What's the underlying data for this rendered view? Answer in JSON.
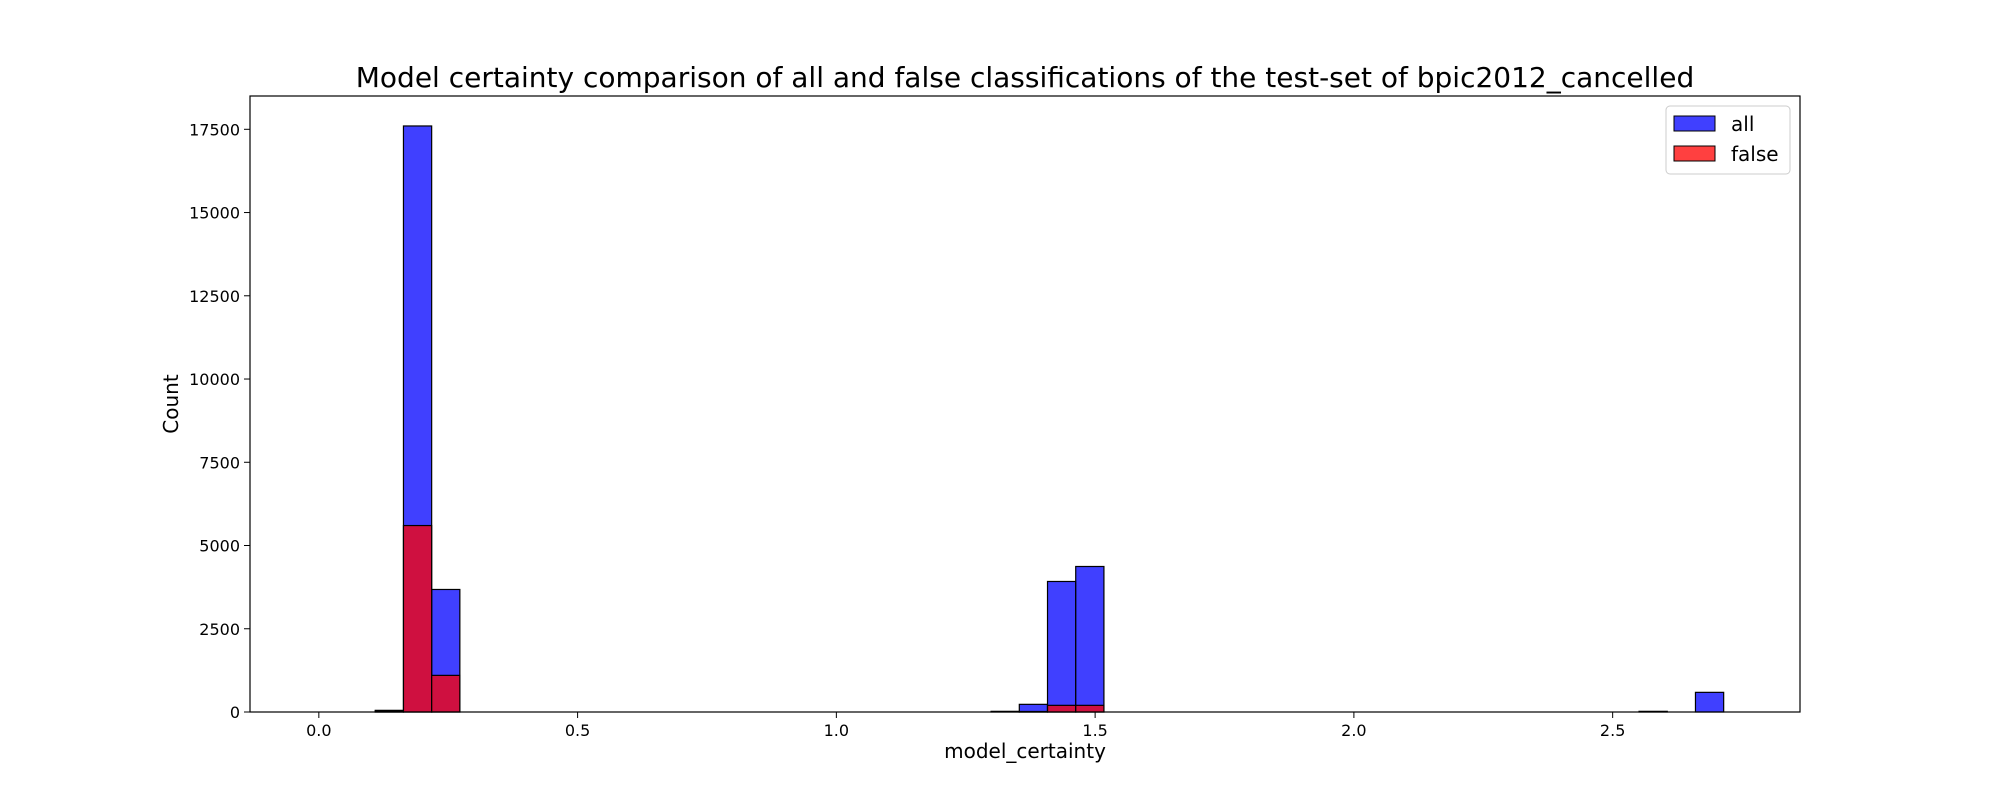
{
  "chart_data": {
    "type": "bar",
    "title": "Model certainty comparison of all and false classifications of the test-set of bpic2012_cancelled",
    "xlabel": "model_certainty",
    "ylabel": "Count",
    "xlim": [
      -0.133,
      2.862
    ],
    "ylim": [
      0,
      18500
    ],
    "xticks": [
      0.0,
      0.5,
      1.0,
      1.5,
      2.0,
      2.5
    ],
    "xtick_labels": [
      "0.0",
      "0.5",
      "1.0",
      "1.5",
      "2.0",
      "2.5"
    ],
    "yticks": [
      0,
      2500,
      5000,
      7500,
      10000,
      12500,
      15000,
      17500
    ],
    "ytick_labels": [
      "0",
      "2500",
      "5000",
      "7500",
      "10000",
      "12500",
      "15000",
      "17500"
    ],
    "bin_width": 0.0545,
    "grid": false,
    "legend_position": "top-right",
    "series": [
      {
        "name": "all",
        "color": "#0000ff",
        "fill_opacity": 0.75,
        "bins": [
          {
            "x0": 0.109,
            "x1": 0.1635,
            "count": 50
          },
          {
            "x0": 0.1635,
            "x1": 0.218,
            "count": 17600
          },
          {
            "x0": 0.218,
            "x1": 0.2725,
            "count": 3680
          },
          {
            "x0": 1.299,
            "x1": 1.3535,
            "count": 20
          },
          {
            "x0": 1.3535,
            "x1": 1.408,
            "count": 230
          },
          {
            "x0": 1.408,
            "x1": 1.4625,
            "count": 3920
          },
          {
            "x0": 1.4625,
            "x1": 1.517,
            "count": 4370
          },
          {
            "x0": 2.551,
            "x1": 2.6055,
            "count": 20
          },
          {
            "x0": 2.66,
            "x1": 2.7145,
            "count": 590
          }
        ]
      },
      {
        "name": "false",
        "color": "#ff0000",
        "fill_opacity": 0.75,
        "bins": [
          {
            "x0": 0.109,
            "x1": 0.1635,
            "count": 30
          },
          {
            "x0": 0.1635,
            "x1": 0.218,
            "count": 5600
          },
          {
            "x0": 0.218,
            "x1": 0.2725,
            "count": 1100
          },
          {
            "x0": 1.3535,
            "x1": 1.408,
            "count": 15
          },
          {
            "x0": 1.408,
            "x1": 1.4625,
            "count": 200
          },
          {
            "x0": 1.4625,
            "x1": 1.517,
            "count": 200
          }
        ]
      }
    ]
  }
}
